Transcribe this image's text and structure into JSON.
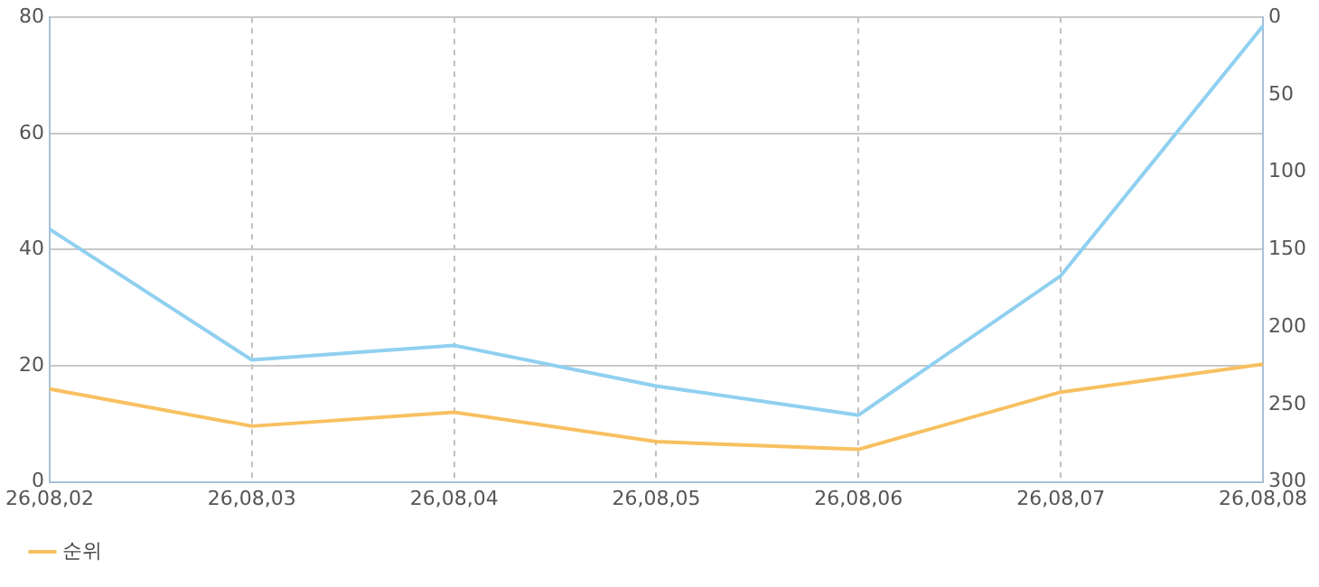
{
  "chart_data": {
    "type": "line",
    "categories": [
      "26,08,02",
      "26,08,03",
      "26,08,04",
      "26,08,05",
      "26,08,06",
      "26,08,07",
      "26,08,08"
    ],
    "series": [
      {
        "color": "#90d0f0",
        "values": [
          43.5,
          21,
          23.5,
          16.5,
          11.5,
          35.5,
          78.5
        ]
      },
      {
        "name": "순위",
        "color": "#f8c060",
        "axis": "y2",
        "values": [
          240,
          264,
          255,
          274,
          279,
          242,
          224
        ]
      }
    ],
    "ylim": [
      0,
      80
    ],
    "yticks": [
      0,
      20,
      40,
      60,
      80
    ],
    "y2lim": [
      300,
      0
    ],
    "y2ticks": [
      0,
      50,
      100,
      150,
      200,
      250,
      300
    ],
    "grid": true,
    "legend": "bottom left",
    "marker": "none",
    "line_style": "solid"
  }
}
